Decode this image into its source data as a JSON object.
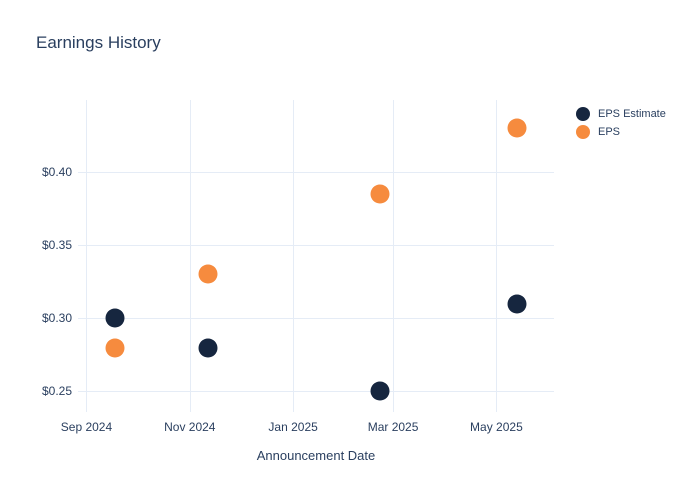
{
  "chart_data": {
    "type": "scatter",
    "title": "Earnings History",
    "xlabel": "Announcement Date",
    "ylabel": "",
    "grid": true,
    "background_color": "#ffffff",
    "grid_color": "#e5ecf6",
    "text_color": "#2a3f5f",
    "legend_position": "right-top-outside",
    "xlim": [
      "2024-08-27",
      "2025-06-04"
    ],
    "ylim": [
      0.236,
      0.449
    ],
    "x_ticks": [
      {
        "date": "2024-09-01",
        "label": "Sep 2024"
      },
      {
        "date": "2024-11-01",
        "label": "Nov 2024"
      },
      {
        "date": "2025-01-01",
        "label": "Jan 2025"
      },
      {
        "date": "2025-03-01",
        "label": "Mar 2025"
      },
      {
        "date": "2025-05-01",
        "label": "May 2025"
      }
    ],
    "y_ticks": [
      {
        "value": 0.25,
        "label": "$0.25"
      },
      {
        "value": 0.3,
        "label": "$0.30"
      },
      {
        "value": 0.35,
        "label": "$0.35"
      },
      {
        "value": 0.4,
        "label": "$0.40"
      }
    ],
    "series": [
      {
        "name": "EPS Estimate",
        "color": "#16263f",
        "points": [
          {
            "date": "2024-09-18",
            "value": 0.3
          },
          {
            "date": "2024-11-12",
            "value": 0.28
          },
          {
            "date": "2025-02-21",
            "value": 0.25
          },
          {
            "date": "2025-05-13",
            "value": 0.31
          }
        ]
      },
      {
        "name": "EPS",
        "color": "#f68b3e",
        "points": [
          {
            "date": "2024-09-18",
            "value": 0.28
          },
          {
            "date": "2024-11-12",
            "value": 0.33
          },
          {
            "date": "2025-02-21",
            "value": 0.385
          },
          {
            "date": "2025-05-13",
            "value": 0.43
          }
        ]
      }
    ]
  }
}
